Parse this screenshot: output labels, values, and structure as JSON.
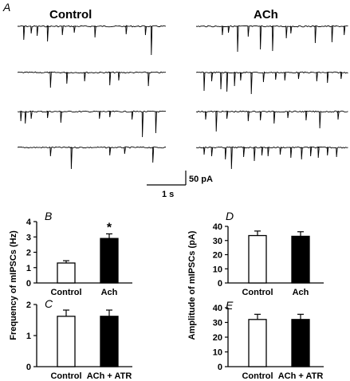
{
  "panel_a": {
    "letter": "A",
    "left_title": "Control",
    "right_title": "ACh",
    "scale_bar": {
      "amplitude_label": "50 pA",
      "time_label": "1 s"
    },
    "traces": {
      "control": [
        {
          "events": [
            [
              0.04,
              0.85
            ],
            [
              0.09,
              0.45
            ],
            [
              0.13,
              0.6
            ],
            [
              0.2,
              0.95
            ],
            [
              0.3,
              0.55
            ],
            [
              0.38,
              0.4
            ],
            [
              0.52,
              0.7
            ],
            [
              0.73,
              0.5
            ],
            [
              0.86,
              0.55
            ],
            [
              0.9,
              1.8
            ]
          ]
        },
        {
          "events": [
            [
              0.22,
              0.95
            ],
            [
              0.33,
              0.7
            ],
            [
              0.45,
              0.55
            ],
            [
              0.62,
              0.8
            ],
            [
              0.68,
              0.5
            ],
            [
              0.88,
              0.85
            ]
          ]
        },
        {
          "events": [
            [
              0.02,
              0.6
            ],
            [
              0.05,
              0.75
            ],
            [
              0.09,
              0.45
            ],
            [
              0.2,
              0.4
            ],
            [
              0.29,
              0.7
            ],
            [
              0.55,
              0.45
            ],
            [
              0.62,
              0.35
            ],
            [
              0.77,
              0.5
            ],
            [
              0.84,
              1.6
            ],
            [
              0.93,
              1.35
            ]
          ]
        },
        {
          "events": [
            [
              0.22,
              0.55
            ],
            [
              0.36,
              1.35
            ],
            [
              0.62,
              0.5
            ],
            [
              0.72,
              0.4
            ],
            [
              0.91,
              0.95
            ]
          ]
        }
      ],
      "ach": [
        {
          "events": [
            [
              0.17,
              0.55
            ],
            [
              0.21,
              0.4
            ],
            [
              0.27,
              1.6
            ],
            [
              0.34,
              0.65
            ],
            [
              0.42,
              1.45
            ],
            [
              0.5,
              1.55
            ],
            [
              0.59,
              0.75
            ],
            [
              0.62,
              0.45
            ],
            [
              0.78,
              1.05
            ],
            [
              0.89,
              1.0
            ],
            [
              0.97,
              0.55
            ]
          ]
        },
        {
          "events": [
            [
              0.05,
              1.15
            ],
            [
              0.1,
              0.55
            ],
            [
              0.16,
              1.05
            ],
            [
              0.2,
              1.2
            ],
            [
              0.25,
              0.85
            ],
            [
              0.29,
              0.5
            ],
            [
              0.36,
              1.35
            ],
            [
              0.44,
              0.6
            ],
            [
              0.52,
              0.45
            ],
            [
              0.58,
              0.5
            ],
            [
              0.67,
              0.4
            ],
            [
              0.79,
              0.55
            ],
            [
              0.86,
              0.65
            ],
            [
              0.95,
              0.4
            ]
          ]
        },
        {
          "events": [
            [
              0.06,
              0.5
            ],
            [
              0.13,
              1.25
            ],
            [
              0.2,
              0.45
            ],
            [
              0.34,
              0.6
            ],
            [
              0.42,
              0.55
            ],
            [
              0.51,
              0.75
            ],
            [
              0.6,
              0.4
            ],
            [
              0.72,
              0.55
            ],
            [
              0.81,
              1.05
            ],
            [
              0.93,
              0.5
            ]
          ]
        },
        {
          "events": [
            [
              0.05,
              0.45
            ],
            [
              0.1,
              0.55
            ],
            [
              0.19,
              0.75
            ],
            [
              0.23,
              1.35
            ],
            [
              0.31,
              0.6
            ],
            [
              0.38,
              0.85
            ],
            [
              0.43,
              0.5
            ],
            [
              0.47,
              0.55
            ],
            [
              0.55,
              0.45
            ],
            [
              0.62,
              0.65
            ],
            [
              0.69,
              0.75
            ],
            [
              0.75,
              0.55
            ],
            [
              0.8,
              0.65
            ],
            [
              0.86,
              0.5
            ],
            [
              0.92,
              0.6
            ]
          ]
        }
      ]
    }
  },
  "left_axis_label": "Frequency of mIPSCs (Hz)",
  "right_axis_label": "Amplitude of mIPSCs (pA)",
  "bar_colors": {
    "control": "#ffffff",
    "treated": "#000000"
  },
  "chart_data": [
    {
      "panel": "B",
      "type": "bar",
      "categories": [
        "Control",
        "Ach"
      ],
      "values": [
        1.3,
        2.9
      ],
      "errors": [
        0.15,
        0.3
      ],
      "ylim": [
        0,
        4
      ],
      "yticks": [
        0,
        1,
        2,
        3,
        4
      ],
      "significance": [
        "",
        "*"
      ],
      "show_category_labels": true
    },
    {
      "panel": "C",
      "type": "bar",
      "categories": [
        "Control",
        "ACh + ATR"
      ],
      "values": [
        1.62,
        1.62
      ],
      "errors": [
        0.2,
        0.2
      ],
      "ylim": [
        0,
        2
      ],
      "yticks": [
        0,
        1,
        2
      ],
      "significance": [
        "",
        ""
      ],
      "show_category_labels": true
    },
    {
      "panel": "D",
      "type": "bar",
      "categories": [
        "Control",
        "Ach"
      ],
      "values": [
        33.5,
        33
      ],
      "errors": [
        3.2,
        3.2
      ],
      "ylim": [
        0,
        40
      ],
      "yticks": [
        0,
        10,
        20,
        30,
        40
      ],
      "significance": [
        "",
        ""
      ],
      "show_category_labels": true
    },
    {
      "panel": "E",
      "type": "bar",
      "categories": [
        "Control",
        "ACh + ATR"
      ],
      "values": [
        32,
        32
      ],
      "errors": [
        3.5,
        3.5
      ],
      "ylim": [
        0,
        40
      ],
      "yticks": [
        0,
        10,
        20,
        30,
        40
      ],
      "significance": [
        "",
        ""
      ],
      "show_category_labels": true
    }
  ]
}
